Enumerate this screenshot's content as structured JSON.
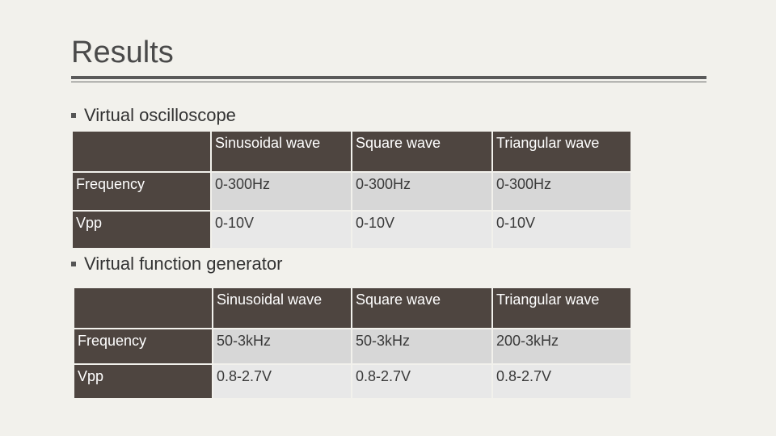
{
  "slide": {
    "title": "Results",
    "sections": [
      {
        "bullet": "Virtual oscilloscope",
        "table": {
          "columns": [
            "",
            "Sinusoidal wave",
            "Square wave",
            "Triangular wave"
          ],
          "rows": [
            {
              "label": "Frequency",
              "values": [
                "0-300Hz",
                "0-300Hz",
                "0-300Hz"
              ]
            },
            {
              "label": "Vpp",
              "values": [
                "0-10V",
                "0-10V",
                "0-10V"
              ]
            }
          ]
        }
      },
      {
        "bullet": "Virtual function generator",
        "table": {
          "columns": [
            "",
            "Sinusoidal wave",
            "Square wave",
            "Triangular wave"
          ],
          "rows": [
            {
              "label": "Frequency",
              "values": [
                "50-3kHz",
                "50-3kHz",
                "200-3kHz"
              ]
            },
            {
              "label": "Vpp",
              "values": [
                "0.8-2.7V",
                "0.8-2.7V",
                "0.8-2.7V"
              ]
            }
          ]
        }
      }
    ]
  },
  "colors": {
    "header_bg": "#4e4540",
    "row_odd_bg": "#d7d7d7",
    "row_even_bg": "#e8e8e8",
    "slide_bg": "#f2f1ec"
  }
}
